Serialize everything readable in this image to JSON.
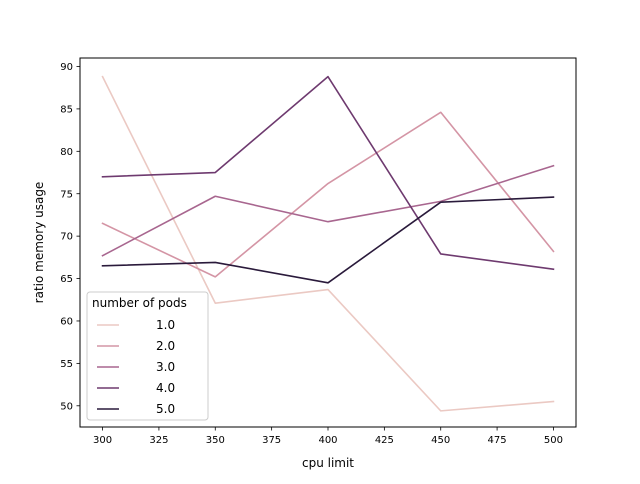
{
  "chart_data": {
    "type": "line",
    "title": "",
    "xlabel": "cpu limit",
    "ylabel": "ratio memory usage",
    "x": [
      300,
      350,
      400,
      450,
      500
    ],
    "xlim": [
      290,
      510
    ],
    "ylim": [
      47.5,
      91
    ],
    "xticks": [
      300,
      325,
      350,
      375,
      400,
      425,
      450,
      475,
      500
    ],
    "yticks": [
      50,
      55,
      60,
      65,
      70,
      75,
      80,
      85,
      90
    ],
    "grid": false,
    "legend": {
      "title": "number of pods",
      "placement": "lower-left"
    },
    "series": [
      {
        "name": "1.0",
        "color": "#ebc9c3",
        "values": [
          88.8,
          62.1,
          63.7,
          49.4,
          50.5
        ]
      },
      {
        "name": "2.0",
        "color": "#d495a5",
        "values": [
          71.5,
          65.2,
          76.2,
          84.6,
          68.2
        ]
      },
      {
        "name": "3.0",
        "color": "#a8668f",
        "values": [
          67.7,
          74.7,
          71.7,
          74.1,
          78.3
        ]
      },
      {
        "name": "4.0",
        "color": "#6e3a6f",
        "values": [
          77.0,
          77.5,
          88.8,
          67.9,
          66.1
        ]
      },
      {
        "name": "5.0",
        "color": "#2a1a3b",
        "values": [
          66.5,
          66.9,
          64.5,
          74.0,
          74.6
        ]
      }
    ]
  }
}
